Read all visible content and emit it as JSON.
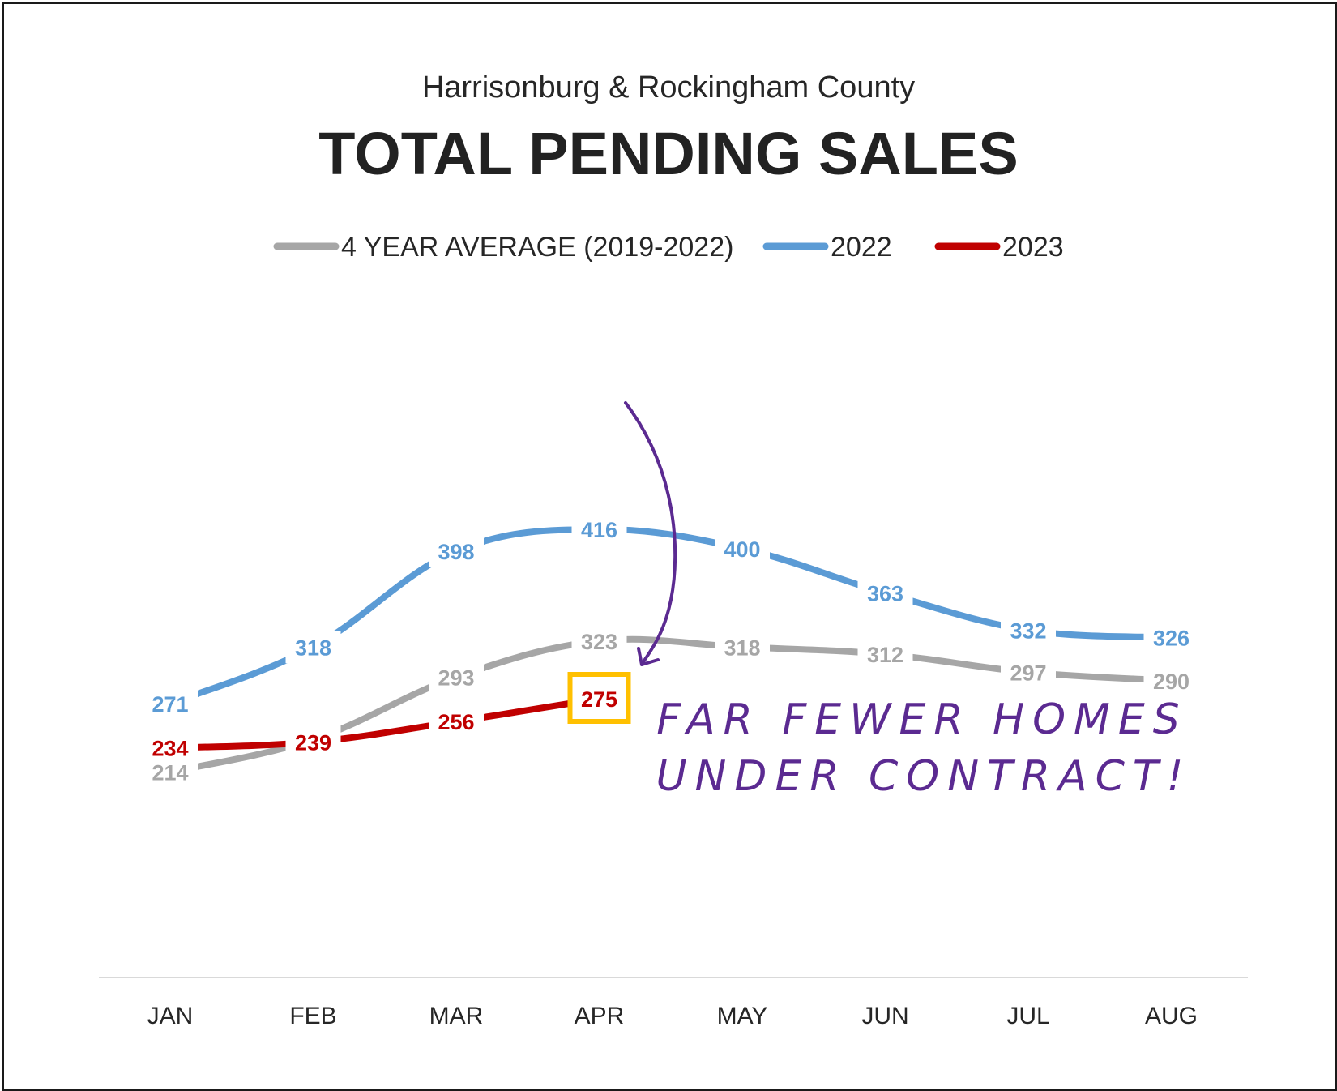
{
  "chart_data": {
    "type": "line",
    "subtitle": "Harrisonburg & Rockingham County",
    "title": "TOTAL PENDING SALES",
    "categories": [
      "JAN",
      "FEB",
      "MAR",
      "APR",
      "MAY",
      "JUN",
      "JUL",
      "AUG"
    ],
    "series": [
      {
        "name": "4 YEAR AVERAGE (2019-2022)",
        "color": "#a6a6a6",
        "label_color": "#a6a6a6",
        "values": [
          214,
          241,
          293,
          323,
          318,
          312,
          297,
          290
        ]
      },
      {
        "name": "2022",
        "color": "#5b9bd5",
        "label_color": "#5b9bd5",
        "values": [
          271,
          318,
          398,
          416,
          400,
          363,
          332,
          326
        ]
      },
      {
        "name": "2023",
        "color": "#c00000",
        "label_color": "#c00000",
        "values": [
          234,
          239,
          256,
          275,
          null,
          null,
          null,
          null
        ]
      }
    ],
    "highlight": {
      "series": "2023",
      "category": "APR",
      "value": 275,
      "box_color": "#ffc000"
    },
    "annotation": {
      "lines": [
        "FAR FEWER HOMES",
        "UNDER CONTRACT!"
      ],
      "color": "#5b2a91",
      "arrow": "from 2022 APR to 2023 APR"
    },
    "legend_position": "top",
    "grid": false,
    "ylim": [
      150,
      450
    ]
  }
}
